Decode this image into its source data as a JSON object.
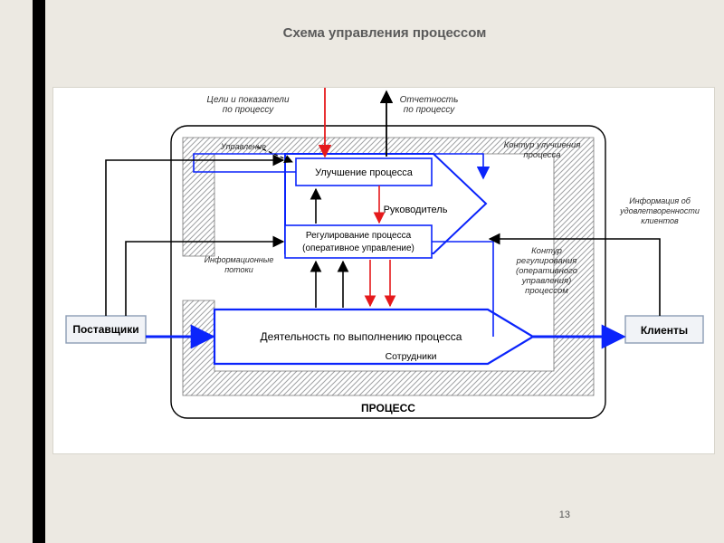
{
  "page": {
    "title": "Схема управления процессом",
    "page_number": "13",
    "bg_color": "#ece9e2",
    "stripe_color": "#000000"
  },
  "diagram": {
    "type": "flowchart",
    "panel": {
      "bg": "#ffffff",
      "border": "#d8d5cc"
    },
    "colors": {
      "blue": "#0b24fb",
      "red": "#e5191b",
      "black": "#000000",
      "box_border": "#8c9cb5",
      "box_fill": "#f1f3f7",
      "text": "#000000",
      "italic_text": "#2d2d2d",
      "hatch": "#9fa1a3"
    },
    "labels": {
      "goals": "Цели и показатели\nпо процессу",
      "reporting": "Отчетность\nпо процессу",
      "management": "Управление",
      "improve_contour": "Контур улучшения\nпроцесса",
      "satisfaction_info": "Информация об\nудовлетворенности\nклиентов",
      "info_flows": "Информационные\nпотоки",
      "reg_contour": "Контур\nрегулирования\n(оперативного\nуправления)\nпроцессом",
      "process_box_title": "ПРОЦЕСС",
      "suppliers": "Поставщики",
      "clients": "Клиенты",
      "improve": "Улучшение процесса",
      "manager": "Руководитель",
      "regulate_l1": "Регулирование процесса",
      "regulate_l2": "(оперативное управление)",
      "activity": "Деятельность по выполнению процесса",
      "staff": "Сотрудники"
    },
    "stroke_widths": {
      "thin": 1.2,
      "med": 1.8,
      "thick": 2.2
    }
  }
}
